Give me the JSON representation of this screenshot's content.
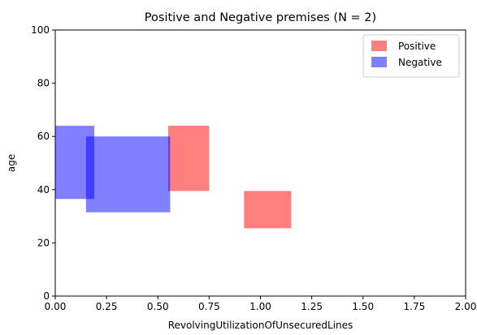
{
  "chart_data": {
    "type": "rectangles",
    "title": "Positive and Negative premises (N = 2)",
    "xlabel": "RevolvingUtilizationOfUnsecuredLines",
    "ylabel": "age",
    "xlim": [
      0,
      2
    ],
    "ylim": [
      0,
      100
    ],
    "x_ticks": [
      "0.00",
      "0.25",
      "0.50",
      "0.75",
      "1.00",
      "1.25",
      "1.50",
      "1.75",
      "2.00"
    ],
    "x_tick_values": [
      0,
      0.25,
      0.5,
      0.75,
      1.0,
      1.25,
      1.5,
      1.75,
      2.0
    ],
    "y_ticks": [
      "0",
      "20",
      "40",
      "60",
      "80",
      "100"
    ],
    "y_tick_values": [
      0,
      20,
      40,
      60,
      80,
      100
    ],
    "grid": false,
    "legend_position": "top-right",
    "series": [
      {
        "name": "Positive",
        "color": "#ff0000",
        "opacity": 0.5,
        "rects": [
          {
            "x0": 0.55,
            "x1": 0.75,
            "y0": 39.5,
            "y1": 64
          },
          {
            "x0": 0.92,
            "x1": 1.15,
            "y0": 25.5,
            "y1": 39.5
          }
        ]
      },
      {
        "name": "Negative",
        "color": "#0000ff",
        "opacity": 0.5,
        "rects": [
          {
            "x0": 0.0,
            "x1": 0.19,
            "y0": 36.5,
            "y1": 64
          },
          {
            "x0": 0.15,
            "x1": 0.56,
            "y0": 31.5,
            "y1": 60
          }
        ]
      }
    ]
  }
}
